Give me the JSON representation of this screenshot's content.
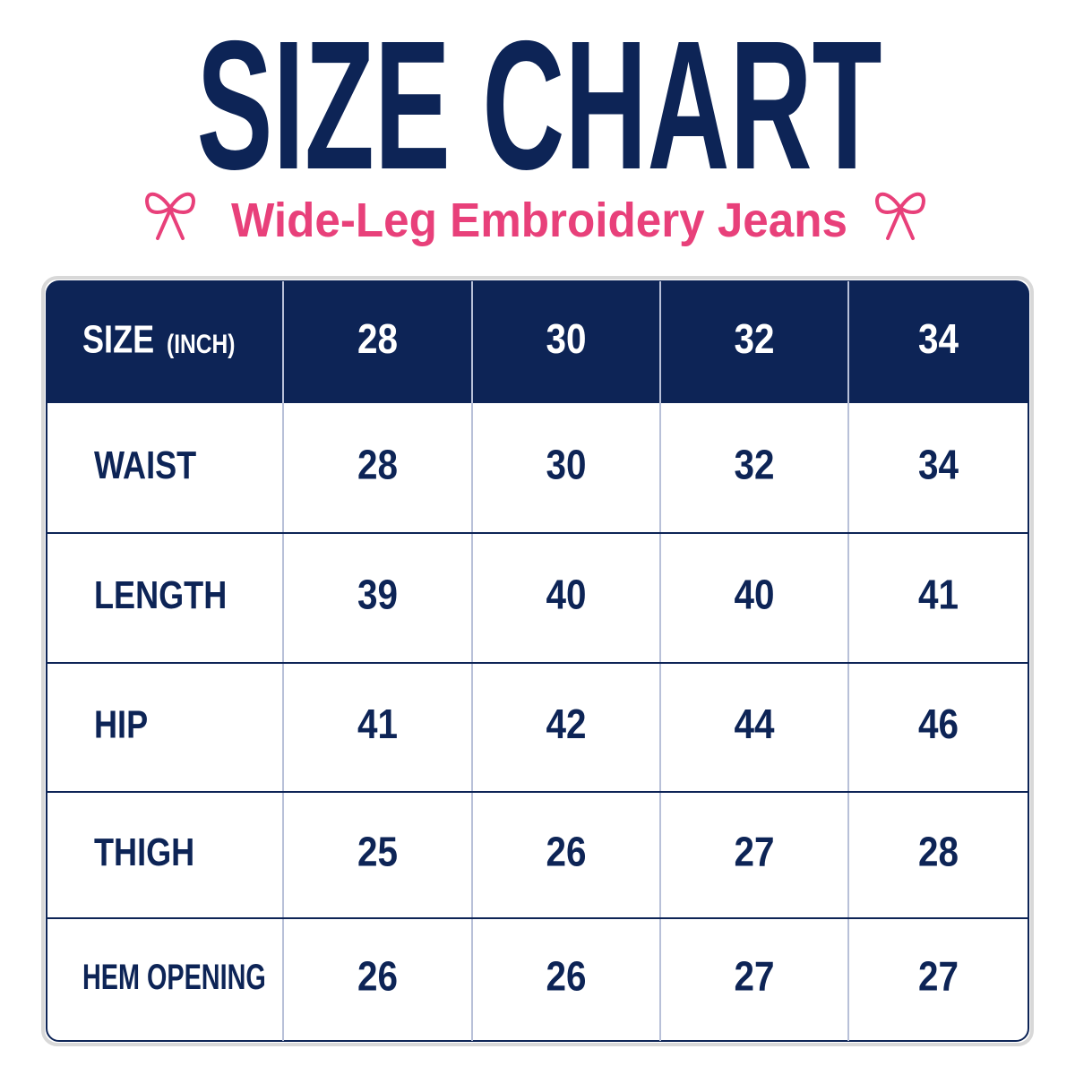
{
  "header": {
    "title": "SIZE CHART",
    "subtitle": "Wide-Leg Embroidery Jeans"
  },
  "table": {
    "header": {
      "label": "SIZE",
      "unit": "(INCH)",
      "sizes": [
        28,
        30,
        32,
        34
      ]
    },
    "rows": [
      [
        "WAIST",
        28,
        30,
        32,
        34
      ],
      [
        "LENGTH",
        39,
        40,
        40,
        41
      ],
      [
        "HIP",
        41,
        42,
        44,
        46
      ],
      [
        "THIGH",
        25,
        26,
        27,
        28
      ],
      [
        "HEM OPENING",
        26,
        26,
        27,
        27
      ]
    ]
  }
}
